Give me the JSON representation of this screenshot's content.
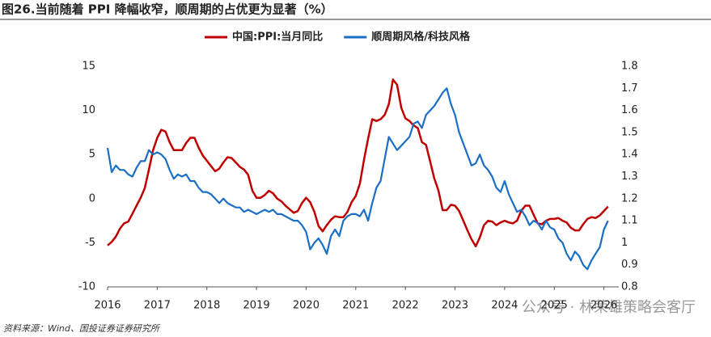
{
  "chart_data": {
    "type": "line",
    "title": "图26.当前随着 PPI 降幅收窄，顺周期的占优更为显著（%）",
    "source": "资料来源：Wind、国投证券证券研究所",
    "watermark": "公众号 · 林荣雄策略会客厅",
    "x": [
      2016.0,
      2016.083,
      2016.167,
      2016.25,
      2016.333,
      2016.417,
      2016.5,
      2016.583,
      2016.667,
      2016.75,
      2016.833,
      2016.917,
      2017.0,
      2017.083,
      2017.167,
      2017.25,
      2017.333,
      2017.417,
      2017.5,
      2017.583,
      2017.667,
      2017.75,
      2017.833,
      2017.917,
      2018.0,
      2018.083,
      2018.167,
      2018.25,
      2018.333,
      2018.417,
      2018.5,
      2018.583,
      2018.667,
      2018.75,
      2018.833,
      2018.917,
      2019.0,
      2019.083,
      2019.167,
      2019.25,
      2019.333,
      2019.417,
      2019.5,
      2019.583,
      2019.667,
      2019.75,
      2019.833,
      2019.917,
      2020.0,
      2020.083,
      2020.167,
      2020.25,
      2020.333,
      2020.417,
      2020.5,
      2020.583,
      2020.667,
      2020.75,
      2020.833,
      2020.917,
      2021.0,
      2021.083,
      2021.167,
      2021.25,
      2021.333,
      2021.417,
      2021.5,
      2021.583,
      2021.667,
      2021.75,
      2021.833,
      2021.917,
      2022.0,
      2022.083,
      2022.167,
      2022.25,
      2022.333,
      2022.417,
      2022.5,
      2022.583,
      2022.667,
      2022.75,
      2022.833,
      2022.917,
      2023.0,
      2023.083,
      2023.167,
      2023.25,
      2023.333,
      2023.417,
      2023.5,
      2023.583,
      2023.667,
      2023.75,
      2023.833,
      2023.917,
      2024.0,
      2024.083,
      2024.167,
      2024.25,
      2024.333,
      2024.417,
      2024.5,
      2024.583,
      2024.667,
      2024.75,
      2024.833,
      2024.917,
      2025.0,
      2025.083,
      2025.167,
      2025.25,
      2025.333,
      2025.417,
      2025.5,
      2025.583,
      2025.667,
      2025.75,
      2025.833,
      2025.917,
      2026.0,
      2026.083
    ],
    "series": [
      {
        "name": "中国:PPI:当月同比",
        "color": "#c00000",
        "values": [
          -5.3,
          -4.9,
          -4.3,
          -3.4,
          -2.8,
          -2.6,
          -1.7,
          -0.8,
          0.1,
          1.2,
          3.3,
          5.5,
          6.9,
          7.8,
          7.6,
          6.4,
          5.5,
          5.5,
          5.5,
          6.3,
          6.9,
          6.9,
          5.8,
          4.9,
          4.3,
          3.7,
          3.1,
          3.4,
          4.1,
          4.7,
          4.6,
          4.1,
          3.6,
          3.3,
          2.7,
          0.9,
          0.1,
          0.1,
          0.4,
          0.9,
          0.6,
          0.0,
          -0.3,
          -0.8,
          -1.2,
          -1.6,
          -1.4,
          -0.5,
          0.1,
          -0.4,
          -1.5,
          -3.1,
          -3.7,
          -3.0,
          -2.4,
          -2.0,
          -2.1,
          -2.1,
          -1.5,
          -0.4,
          0.3,
          1.7,
          4.4,
          6.8,
          9.0,
          8.8,
          9.0,
          9.5,
          10.7,
          13.5,
          12.9,
          10.3,
          9.1,
          8.8,
          8.3,
          8.0,
          6.4,
          6.1,
          4.2,
          2.3,
          0.9,
          -1.3,
          -1.3,
          -0.7,
          -0.8,
          -1.4,
          -2.5,
          -3.6,
          -4.6,
          -5.4,
          -4.4,
          -3.0,
          -2.5,
          -2.6,
          -3.0,
          -2.7,
          -2.5,
          -2.7,
          -2.8,
          -2.5,
          -1.4,
          -0.8,
          -0.8,
          -1.8,
          -2.8,
          -2.9,
          -2.5,
          -2.3,
          -2.3,
          -2.2,
          -2.5,
          -2.7,
          -3.3,
          -3.6,
          -3.6,
          -2.9,
          -2.3,
          -2.1,
          -2.2,
          -1.9,
          -1.4,
          -0.9
        ]
      },
      {
        "name": "顺周期风格/科技风格",
        "color": "#1a6fc4",
        "axis": "y2",
        "values": [
          1.43,
          1.32,
          1.35,
          1.33,
          1.33,
          1.31,
          1.3,
          1.34,
          1.37,
          1.37,
          1.42,
          1.4,
          1.41,
          1.4,
          1.38,
          1.33,
          1.29,
          1.31,
          1.3,
          1.31,
          1.28,
          1.28,
          1.25,
          1.23,
          1.23,
          1.22,
          1.2,
          1.18,
          1.2,
          1.18,
          1.17,
          1.16,
          1.16,
          1.14,
          1.15,
          1.14,
          1.13,
          1.14,
          1.15,
          1.14,
          1.15,
          1.13,
          1.13,
          1.12,
          1.11,
          1.1,
          1.1,
          1.08,
          1.05,
          0.97,
          1.0,
          1.02,
          0.99,
          0.95,
          1.03,
          1.06,
          1.03,
          1.1,
          1.12,
          1.13,
          1.13,
          1.12,
          1.15,
          1.1,
          1.18,
          1.25,
          1.28,
          1.38,
          1.48,
          1.45,
          1.42,
          1.44,
          1.46,
          1.48,
          1.54,
          1.55,
          1.52,
          1.58,
          1.6,
          1.62,
          1.65,
          1.68,
          1.7,
          1.63,
          1.58,
          1.5,
          1.45,
          1.4,
          1.35,
          1.36,
          1.4,
          1.35,
          1.33,
          1.3,
          1.25,
          1.23,
          1.28,
          1.22,
          1.18,
          1.14,
          1.15,
          1.12,
          1.08,
          1.1,
          1.09,
          1.06,
          1.1,
          1.07,
          1.06,
          1.02,
          1.0,
          0.95,
          0.92,
          0.96,
          0.94,
          0.9,
          0.88,
          0.92,
          0.95,
          0.98,
          1.06,
          1.1
        ]
      }
    ],
    "xlim": [
      2016,
      2026.3
    ],
    "xticks": [
      2016,
      2017,
      2018,
      2019,
      2020,
      2021,
      2022,
      2023,
      2024,
      2025,
      2026
    ],
    "ylim": [
      -10,
      15
    ],
    "yticks": [
      -10,
      -5,
      0,
      5,
      10,
      15
    ],
    "y2lim": [
      0.8,
      1.8
    ],
    "y2ticks": [
      0.8,
      0.9,
      1.0,
      1.1,
      1.2,
      1.3,
      1.4,
      1.5,
      1.6,
      1.7,
      1.8
    ],
    "grid": false,
    "legend": "top"
  }
}
